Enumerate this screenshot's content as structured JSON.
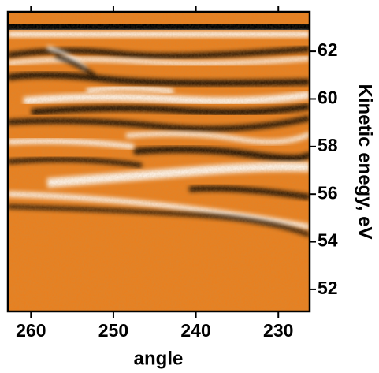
{
  "chart_data": {
    "type": "heatmap",
    "xlabel": "angle",
    "ylabel": "Kinetic enegy, eV",
    "xlim": [
      262.8,
      226.2
    ],
    "xticks": [
      260,
      250,
      240,
      230
    ],
    "ylim": [
      51.07,
      63.66
    ],
    "yticks": [
      52,
      54,
      56,
      58,
      60,
      62
    ],
    "colormap": [
      "#000000",
      "#e88020",
      "#ffffff"
    ]
  }
}
